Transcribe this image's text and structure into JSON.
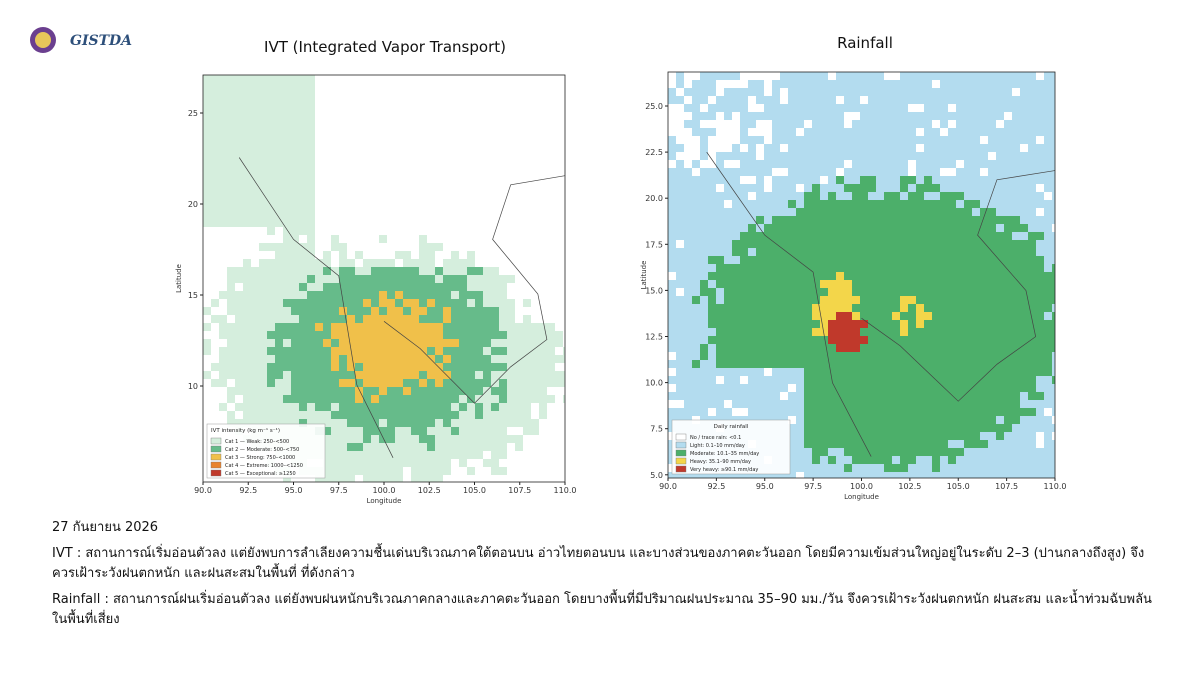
{
  "header": {
    "logo_text": "GISTDA"
  },
  "panels": [
    {
      "title": "IVT (Integrated Vapor Transport)",
      "y_axis_label": "Latitude",
      "x_axis_label": "Longitude",
      "y_ticks": [
        "25",
        "20",
        "15",
        "10"
      ],
      "x_ticks": [
        "90.0",
        "92.5",
        "95.0",
        "97.5",
        "100.0",
        "102.5",
        "105.0",
        "107.5",
        "110.0"
      ],
      "legend": {
        "title": "IVT intensity (kg m⁻¹ s⁻¹)",
        "items": [
          "Cat 1 — Weak: 250–<500",
          "Cat 2 — Moderate: 500–<750",
          "Cat 3 — Strong: 750–<1000",
          "Cat 4 — Extreme: 1000–<1250",
          "Cat 5 — Exceptional: ≥1250"
        ]
      }
    },
    {
      "title": "Rainfall",
      "y_axis_label": "Latitude",
      "x_axis_label": "Longitude",
      "y_ticks": [
        "25.0",
        "22.5",
        "20.0",
        "17.5",
        "15.0",
        "12.5",
        "10.0",
        "7.5",
        "5.0"
      ],
      "x_ticks": [
        "90.0",
        "92.5",
        "95.0",
        "97.5",
        "100.0",
        "102.5",
        "105.0",
        "107.5",
        "110.0"
      ],
      "legend": {
        "title": "Daily rainfall",
        "items": [
          "No / trace rain: <0.1",
          "Light: 0.1–10 mm/day",
          "Moderate: 10.1–35 mm/day",
          "Heavy: 35.1–90 mm/day",
          "Very heavy: ≥90.1 mm/day"
        ]
      }
    }
  ],
  "text": {
    "date": "27 กันยายน 2026",
    "paragraphs": [
      {
        "label": "IVT",
        "body": ": สถานการณ์เริ่มอ่อนตัวลง แต่ยังพบการลำเลียงความชื้นเด่นบริเวณภาคใต้ตอนบน อ่าวไทยตอนบน และบางส่วนของภาคตะวันออก โดยมีความเข้มส่วนใหญ่อยู่ในระดับ 2–3 (ปานกลางถึงสูง) จึงควรเฝ้าระวังฝนตกหนัก และฝนสะสมในพื้นที่ ที่ดังกล่าว"
      },
      {
        "label": "Rainfall",
        "body": ": สถานการณ์ฝนเริ่มอ่อนตัวลง แต่ยังพบฝนหนักบริเวณภาคกลางและภาคตะวันออก โดยบางพื้นที่มีปริมาณฝนประมาณ 35–90 มม./วัน จึงควรเฝ้าระวังฝนตกหนัก ฝนสะสม และน้ำท่วมฉับพลันในพื้นที่เสี่ยง"
      }
    ]
  }
}
